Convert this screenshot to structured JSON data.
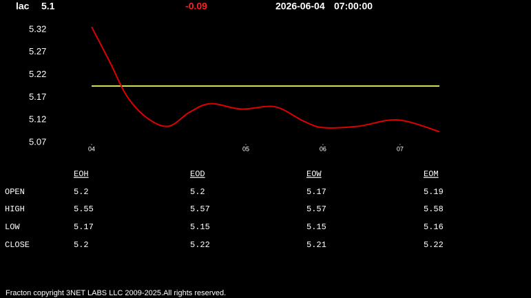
{
  "header": {
    "symbol": "lac",
    "price": 5.1,
    "change": -0.09,
    "date": "2026-06-04",
    "time": "07:00:00"
  },
  "chart_data": {
    "type": "line",
    "x": [
      0,
      0.24,
      0.46,
      0.73,
      1.0,
      1.27,
      1.54,
      1.94,
      2.38,
      2.74,
      3.0,
      3.46,
      3.97,
      4.51
    ],
    "xlim": [
      0,
      4.51
    ],
    "xticks": [
      {
        "value": 0,
        "label": "04"
      },
      {
        "value": 2,
        "label": "05"
      },
      {
        "value": 3,
        "label": "06"
      },
      {
        "value": 4,
        "label": "07"
      }
    ],
    "ylim": [
      5.07,
      5.32
    ],
    "yticks": [
      5.07,
      5.12,
      5.17,
      5.22,
      5.27,
      5.32
    ],
    "series": [
      {
        "color": "#e00000",
        "values": [
          5.326,
          5.247,
          5.172,
          5.123,
          5.106,
          5.137,
          5.156,
          5.144,
          5.149,
          5.118,
          5.103,
          5.106,
          5.12,
          5.094
        ]
      },
      {
        "color": "#d4e157",
        "values": [
          5.195,
          5.195,
          5.195,
          5.195,
          5.195,
          5.195,
          5.195,
          5.195,
          5.195,
          5.195,
          5.195,
          5.195,
          5.195,
          5.195
        ]
      }
    ]
  },
  "table": {
    "columns": [
      "EOH",
      "EOD",
      "EOW",
      "EOM"
    ],
    "rows": [
      {
        "label": "OPEN",
        "values": [
          5.2,
          5.2,
          5.17,
          5.19
        ]
      },
      {
        "label": "HIGH",
        "values": [
          5.55,
          5.57,
          5.57,
          5.58
        ]
      },
      {
        "label": "LOW",
        "values": [
          5.17,
          5.15,
          5.15,
          5.16
        ]
      },
      {
        "label": "CLOSE",
        "values": [
          5.2,
          5.22,
          5.21,
          5.22
        ]
      }
    ]
  },
  "footer": "Fracton copyright 3NET LABS LLC 2009-2025.All rights reserved."
}
